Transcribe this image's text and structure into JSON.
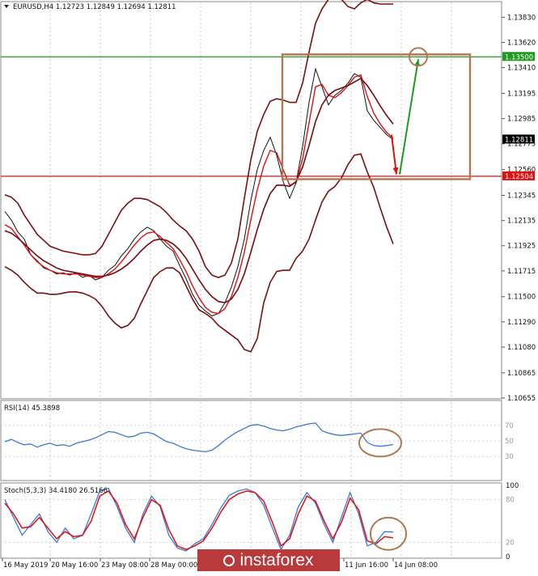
{
  "chart_data": [
    {
      "type": "line",
      "panel": "price",
      "title": "EURUSD,H4  1.12723 1.12849 1.12694 1.12811",
      "y_ticks": [
        "1.13830",
        "1.13620",
        "1.13410",
        "1.13195",
        "1.12985",
        "1.12775",
        "1.12560",
        "1.12345",
        "1.12135",
        "1.11925",
        "1.11715",
        "1.11500",
        "1.11290",
        "1.11080",
        "1.10865",
        "1.10655"
      ],
      "ylim": [
        1.10655,
        1.1392
      ],
      "horizontal_levels": [
        {
          "value": 1.135,
          "label": "1.13500",
          "color": "#1e9a1e"
        },
        {
          "value": 1.12504,
          "label": "1.12504",
          "color": "#e01010"
        },
        {
          "value": 1.12811,
          "label": "1.12811",
          "color": "#000000"
        }
      ],
      "series": [
        {
          "role": "close",
          "color": "#111111",
          "values": [
            1.1221,
            1.1214,
            1.1204,
            1.1198,
            1.1185,
            1.118,
            1.1174,
            1.1172,
            1.1169,
            1.117,
            1.1168,
            1.117,
            1.1166,
            1.1168,
            1.1164,
            1.1166,
            1.1172,
            1.1176,
            1.1184,
            1.119,
            1.1198,
            1.1204,
            1.1208,
            1.1205,
            1.1198,
            1.1192,
            1.1188,
            1.1176,
            1.1165,
            1.1152,
            1.1143,
            1.1138,
            1.1134,
            1.1136,
            1.1145,
            1.1158,
            1.1175,
            1.1198,
            1.123,
            1.1256,
            1.1272,
            1.1283,
            1.1268,
            1.1246,
            1.1232,
            1.1245,
            1.1275,
            1.1312,
            1.134,
            1.1325,
            1.131,
            1.1318,
            1.1322,
            1.1328,
            1.1336,
            1.1333,
            1.1305,
            1.1297,
            1.1291,
            1.1285,
            1.12811
          ]
        },
        {
          "role": "fast-ma",
          "color": "#e01010",
          "values": [
            1.121,
            1.1207,
            1.12,
            1.1193,
            1.1185,
            1.1179,
            1.1175,
            1.1172,
            1.117,
            1.1169,
            1.1169,
            1.1169,
            1.1168,
            1.1167,
            1.1166,
            1.1166,
            1.1169,
            1.1173,
            1.1179,
            1.1186,
            1.1193,
            1.1199,
            1.1203,
            1.1204,
            1.12,
            1.1195,
            1.119,
            1.1181,
            1.1171,
            1.1159,
            1.1149,
            1.1141,
            1.1137,
            1.1136,
            1.114,
            1.115,
            1.1166,
            1.1187,
            1.1214,
            1.1239,
            1.1259,
            1.1272,
            1.127,
            1.1256,
            1.1243,
            1.1245,
            1.1265,
            1.1295,
            1.1325,
            1.1327,
            1.1318,
            1.1316,
            1.132,
            1.1326,
            1.1333,
            1.1335,
            1.1317,
            1.1303,
            1.1294,
            1.1287,
            1.1282
          ]
        },
        {
          "role": "slow-ma",
          "color": "#3a78d8",
          "values": [
            1.1205,
            1.1203,
            1.1199,
            1.1194,
            1.1189,
            1.1184,
            1.118,
            1.1177,
            1.1174,
            1.1172,
            1.1171,
            1.117,
            1.1169,
            1.1168,
            1.1167,
            1.1167,
            1.1168,
            1.117,
            1.1173,
            1.1177,
            1.1182,
            1.1188,
            1.1193,
            1.1197,
            1.1198,
            1.1197,
            1.1194,
            1.1189,
            1.1182,
            1.1173,
            1.1164,
            1.1156,
            1.115,
            1.1146,
            1.1145,
            1.1148,
            1.1156,
            1.1169,
            1.1187,
            1.1206,
            1.1223,
            1.1236,
            1.1243,
            1.1243,
            1.1242,
            1.1246,
            1.1258,
            1.1276,
            1.1296,
            1.131,
            1.1318,
            1.1322,
            1.1324,
            1.1326,
            1.1329,
            1.1332,
            1.1326,
            1.1318,
            1.1309,
            1.1301,
            1.1294
          ]
        },
        {
          "role": "bollinger-upper",
          "color": "#7a1010",
          "values": [
            1.1235,
            1.1233,
            1.1228,
            1.1218,
            1.121,
            1.1202,
            1.1197,
            1.1192,
            1.119,
            1.1188,
            1.1187,
            1.1186,
            1.1185,
            1.1185,
            1.1186,
            1.1192,
            1.1202,
            1.1212,
            1.1222,
            1.1228,
            1.1232,
            1.1232,
            1.1231,
            1.1228,
            1.1225,
            1.122,
            1.1214,
            1.1209,
            1.1205,
            1.1198,
            1.1188,
            1.1175,
            1.1168,
            1.1166,
            1.1168,
            1.1178,
            1.1198,
            1.1232,
            1.1264,
            1.1288,
            1.1302,
            1.1313,
            1.1315,
            1.1314,
            1.1312,
            1.1312,
            1.1328,
            1.1354,
            1.1378,
            1.139,
            1.1398,
            1.1402,
            1.1398,
            1.1392,
            1.139,
            1.1395,
            1.1398,
            1.1395,
            1.1394,
            1.1394,
            1.1394
          ]
        },
        {
          "role": "bollinger-middle",
          "color": "#7a1010",
          "values": [
            1.1205,
            1.1203,
            1.1199,
            1.1194,
            1.1189,
            1.1184,
            1.118,
            1.1177,
            1.1174,
            1.1172,
            1.1171,
            1.117,
            1.1169,
            1.1168,
            1.1167,
            1.1167,
            1.1168,
            1.117,
            1.1173,
            1.1177,
            1.1182,
            1.1188,
            1.1193,
            1.1197,
            1.1198,
            1.1197,
            1.1194,
            1.1189,
            1.1182,
            1.1173,
            1.1164,
            1.1156,
            1.115,
            1.1146,
            1.1145,
            1.1148,
            1.1156,
            1.1169,
            1.1187,
            1.1206,
            1.1223,
            1.1236,
            1.1243,
            1.1243,
            1.1242,
            1.1246,
            1.1258,
            1.1276,
            1.1296,
            1.131,
            1.1318,
            1.1322,
            1.1324,
            1.1326,
            1.1329,
            1.1332,
            1.1326,
            1.1318,
            1.1309,
            1.1301,
            1.1294
          ]
        },
        {
          "role": "bollinger-lower",
          "color": "#7a1010",
          "values": [
            1.1175,
            1.1172,
            1.1168,
            1.1162,
            1.1157,
            1.1153,
            1.1153,
            1.1152,
            1.1152,
            1.1153,
            1.1154,
            1.1154,
            1.1153,
            1.1151,
            1.1148,
            1.1142,
            1.1134,
            1.1128,
            1.1124,
            1.1126,
            1.1132,
            1.1144,
            1.1155,
            1.1166,
            1.1171,
            1.1174,
            1.1174,
            1.117,
            1.1159,
            1.1148,
            1.1139,
            1.1136,
            1.1132,
            1.1126,
            1.1122,
            1.1118,
            1.1114,
            1.1106,
            1.1104,
            1.1115,
            1.1145,
            1.1162,
            1.1171,
            1.1172,
            1.1172,
            1.1182,
            1.1188,
            1.1198,
            1.1214,
            1.1229,
            1.1238,
            1.1242,
            1.1249,
            1.126,
            1.1268,
            1.1269,
            1.1254,
            1.1241,
            1.1224,
            1.1208,
            1.1194
          ]
        }
      ],
      "annotations": [
        {
          "type": "rectangle",
          "color": "#b07850",
          "x_from": 1.11,
          "x_to": 1.135,
          "y_from": 1.1248,
          "y_to": 1.1352
        },
        {
          "type": "arrow",
          "color": "#e01010",
          "from": [
            1.128,
            1.1285
          ],
          "to": [
            1.12504,
            1.1252
          ]
        },
        {
          "type": "arrow",
          "color": "#1e9a1e",
          "from": [
            1.1252,
            1.1252
          ],
          "to": [
            1.135,
            1.1348
          ]
        },
        {
          "type": "circle",
          "color": "#b07850",
          "at": [
            1.135,
            1.135
          ]
        }
      ]
    },
    {
      "type": "line",
      "panel": "rsi",
      "title": "RSI(14) 45.3898",
      "ylim": [
        0,
        100
      ],
      "y_ticks": [
        "70",
        "50",
        "30"
      ],
      "series": [
        {
          "role": "rsi",
          "color": "#3a78d8",
          "values": [
            49,
            52,
            48,
            45,
            46,
            42,
            45,
            47,
            44,
            45,
            43,
            47,
            49,
            51,
            54,
            58,
            62,
            61,
            58,
            55,
            56,
            60,
            61,
            59,
            54,
            49,
            47,
            43,
            40,
            38,
            37,
            36,
            38,
            44,
            51,
            57,
            62,
            66,
            70,
            71,
            69,
            66,
            64,
            63,
            65,
            68,
            70,
            72,
            73,
            63,
            60,
            58,
            57,
            58,
            59,
            60,
            48,
            44,
            43,
            44,
            45.39
          ]
        }
      ],
      "annotations": [
        {
          "type": "circle",
          "color": "#b07850"
        }
      ]
    },
    {
      "type": "line",
      "panel": "stochastic",
      "title": "Stoch(5,3,3) 34.4180 26.5166",
      "ylim": [
        0,
        100
      ],
      "y_ticks": [
        "100",
        "80",
        "20",
        "0"
      ],
      "x_labels": [
        "16 May 2019",
        "20 May 16:00",
        "23 May 08:00",
        "28 May 00:00",
        "11 Jun 16:00",
        "14 Jun 08:00"
      ],
      "series": [
        {
          "role": "main",
          "color": "#3a78d8",
          "values": [
            80,
            55,
            30,
            45,
            60,
            35,
            20,
            40,
            25,
            30,
            60,
            92,
            96,
            70,
            40,
            20,
            60,
            85,
            70,
            30,
            12,
            8,
            18,
            25,
            45,
            68,
            86,
            92,
            95,
            90,
            72,
            40,
            10,
            30,
            70,
            90,
            75,
            45,
            20,
            55,
            90,
            60,
            15,
            20,
            35,
            34.418
          ]
        },
        {
          "role": "signal",
          "color": "#e01010",
          "values": [
            75,
            60,
            40,
            42,
            55,
            40,
            25,
            35,
            28,
            30,
            50,
            85,
            92,
            75,
            45,
            25,
            55,
            80,
            72,
            38,
            15,
            10,
            15,
            22,
            40,
            62,
            80,
            88,
            92,
            90,
            78,
            48,
            15,
            25,
            60,
            85,
            78,
            50,
            25,
            48,
            82,
            66,
            22,
            18,
            28,
            26.5166
          ]
        }
      ],
      "annotations": [
        {
          "type": "circle",
          "color": "#b07850"
        }
      ]
    }
  ],
  "watermark": {
    "text": "instaforex"
  }
}
